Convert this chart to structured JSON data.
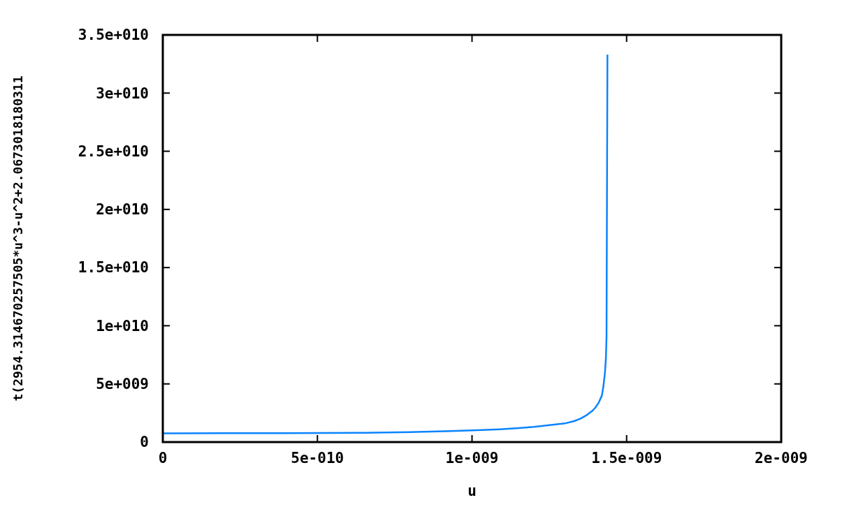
{
  "chart_data": {
    "type": "line",
    "xlabel": "u",
    "ylabel": "t(2954.314670257505*u^3-u^2+2.0673018180311",
    "x": [
      0,
      2e-10,
      4e-10,
      6.5e-10,
      8e-10,
      9.3e-10,
      1e-09,
      1.09e-09,
      1.15e-09,
      1.2e-09,
      1.25e-09,
      1.3e-09,
      1.33e-09,
      1.35e-09,
      1.37e-09,
      1.38e-09,
      1.39e-09,
      1.4e-09,
      1.41e-09,
      1.42e-09,
      1.425e-09,
      1.43e-09,
      1.433e-09,
      1.435e-09,
      1.438e-09
    ],
    "series": [
      {
        "color": "#0a84ff",
        "values": [
          750000000.0,
          760000000.0,
          770000000.0,
          800000000.0,
          860000000.0,
          950000000.0,
          1000000000.0,
          1100000000.0,
          1200000000.0,
          1300000000.0,
          1450000000.0,
          1600000000.0,
          1800000000.0,
          2000000000.0,
          2300000000.0,
          2500000000.0,
          2700000000.0,
          3000000000.0,
          3400000000.0,
          4000000000.0,
          4800000000.0,
          6000000000.0,
          7200000000.0,
          9000000000.0,
          33300000000.0
        ]
      }
    ],
    "xlim": [
      0,
      2e-09
    ],
    "xticks": [
      {
        "value": 0,
        "label": "0"
      },
      {
        "value": 5e-10,
        "label": "5e-010"
      },
      {
        "value": 1e-09,
        "label": "1e-009"
      },
      {
        "value": 1.5e-09,
        "label": "1.5e-009"
      },
      {
        "value": 2e-09,
        "label": "2e-009"
      }
    ],
    "ylim": [
      0,
      35000000000.0
    ],
    "yticks": [
      {
        "value": 0,
        "label": "0"
      },
      {
        "value": 5000000000.0,
        "label": "5e+009"
      },
      {
        "value": 10000000000.0,
        "label": "1e+010"
      },
      {
        "value": 15000000000.0,
        "label": "1.5e+010"
      },
      {
        "value": 20000000000.0,
        "label": "2e+010"
      },
      {
        "value": 25000000000.0,
        "label": "2.5e+010"
      },
      {
        "value": 30000000000.0,
        "label": "3e+010"
      },
      {
        "value": 35000000000.0,
        "label": "3.5e+010"
      }
    ],
    "grid": false
  }
}
